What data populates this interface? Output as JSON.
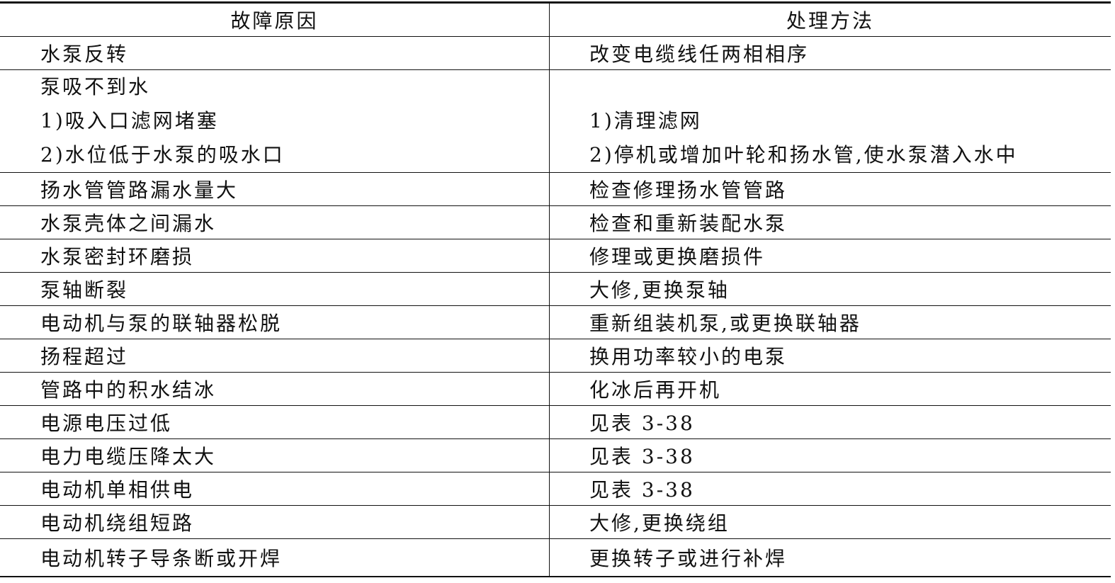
{
  "table": {
    "headers": [
      "故障原因",
      "处理方法"
    ],
    "rows": [
      {
        "cause": [
          "水泵反转"
        ],
        "method": [
          "改变电缆线任两相相序"
        ]
      },
      {
        "cause": [
          "泵吸不到水",
          "1)吸入口滤网堵塞",
          "2)水位低于水泵的吸水口"
        ],
        "method": [
          "",
          "1)清理滤网",
          "2)停机或增加叶轮和扬水管,使水泵潜入水中"
        ]
      },
      {
        "cause": [
          "扬水管管路漏水量大"
        ],
        "method": [
          "检查修理扬水管管路"
        ]
      },
      {
        "cause": [
          "水泵壳体之间漏水"
        ],
        "method": [
          "检查和重新装配水泵"
        ]
      },
      {
        "cause": [
          "水泵密封环磨损"
        ],
        "method": [
          "修理或更换磨损件"
        ]
      },
      {
        "cause": [
          "泵轴断裂"
        ],
        "method": [
          "大修,更换泵轴"
        ]
      },
      {
        "cause": [
          "电动机与泵的联轴器松脱"
        ],
        "method": [
          "重新组装机泵,或更换联轴器"
        ]
      },
      {
        "cause": [
          "扬程超过"
        ],
        "method": [
          "换用功率较小的电泵"
        ]
      },
      {
        "cause": [
          "管路中的积水结冰"
        ],
        "method": [
          "化冰后再开机"
        ]
      },
      {
        "cause": [
          "电源电压过低"
        ],
        "method": [
          "见表 3-38"
        ]
      },
      {
        "cause": [
          "电力电缆压降太大"
        ],
        "method": [
          "见表 3-38"
        ]
      },
      {
        "cause": [
          "电动机单相供电"
        ],
        "method": [
          "见表 3-38"
        ]
      },
      {
        "cause": [
          "电动机绕组短路"
        ],
        "method": [
          "大修,更换绕组"
        ]
      },
      {
        "cause": [
          "电动机转子导条断或开焊"
        ],
        "method": [
          "更换转子或进行补焊"
        ]
      }
    ]
  }
}
